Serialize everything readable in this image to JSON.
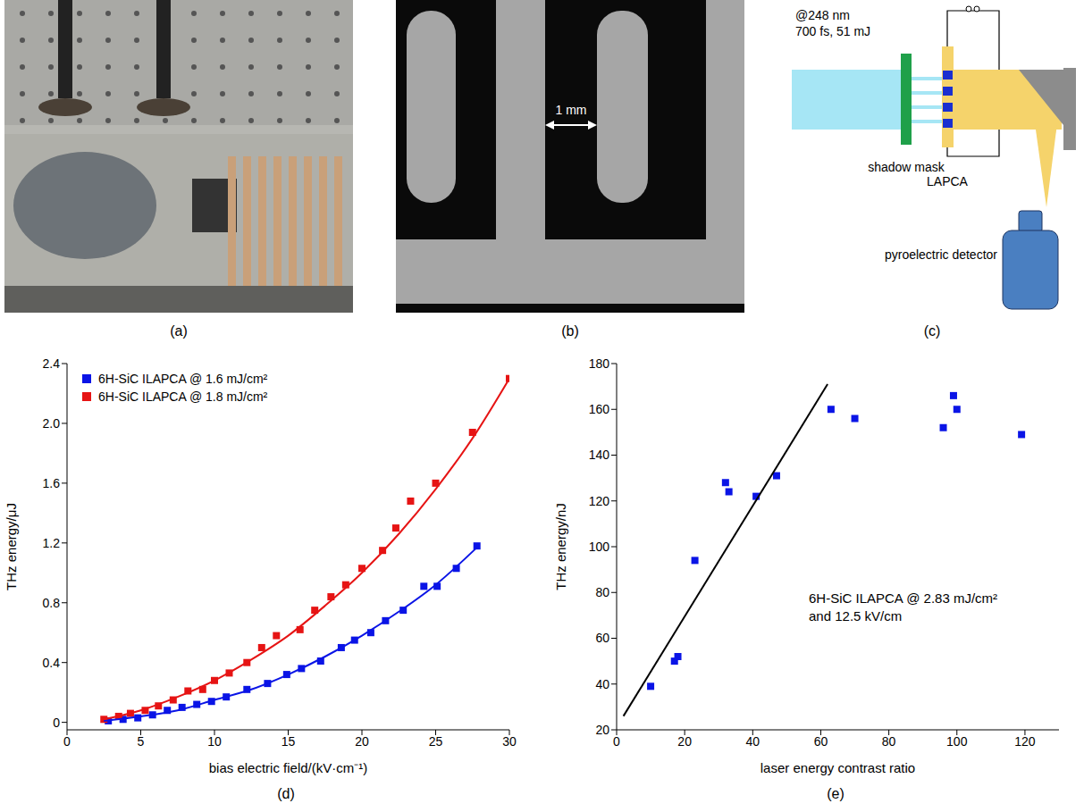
{
  "panel_labels": [
    "(a)",
    "(b)",
    "(c)",
    "(d)",
    "(e)"
  ],
  "image_b": {
    "scale_label": "1 mm"
  },
  "diagram_c": {
    "laser": [
      "@248 nm",
      "700 fs, 51 mJ"
    ],
    "mask_label": "shadow mask",
    "antenna_label": "LAPCA",
    "detector_label": "pyroelectric detector"
  },
  "chart_data": [
    {
      "type": "scatter",
      "x_label": "bias electric field/(kV·cm⁻¹)",
      "y_label": "THz energy/μJ",
      "xlim": [
        0,
        30
      ],
      "xticks": [
        0,
        5,
        10,
        15,
        20,
        25,
        30
      ],
      "ylim": [
        -0.05,
        2.4
      ],
      "yticks": [
        0,
        0.4,
        0.8,
        1.2,
        1.6,
        {
          "value": 2,
          "label": "2.0"
        },
        2.4
      ],
      "grid": false,
      "legend": "upper left",
      "series": [
        {
          "name": "6H-SiC ILAPCA @ 1.6 mJ/cm²",
          "color": "#0a14e6",
          "marker": "square",
          "x": [
            2.8,
            3.8,
            4.8,
            5.8,
            6.8,
            7.8,
            8.8,
            9.8,
            10.8,
            12.2,
            13.6,
            14.9,
            15.9,
            17.2,
            18.6,
            19.5,
            20.6,
            21.6,
            22.8,
            24.2,
            25.1,
            26.4,
            27.8
          ],
          "values": [
            0.01,
            0.02,
            0.03,
            0.05,
            0.08,
            0.1,
            0.12,
            0.14,
            0.17,
            0.22,
            0.26,
            0.32,
            0.36,
            0.41,
            0.5,
            0.55,
            0.6,
            0.68,
            0.75,
            0.91,
            0.91,
            1.03,
            1.18
          ]
        },
        {
          "name": "6H-SiC ILAPCA @ 1.8 mJ/cm²",
          "color": "#e61414",
          "marker": "square",
          "x": [
            2.5,
            3.5,
            4.3,
            5.3,
            6.2,
            7.2,
            8.2,
            9.2,
            10,
            11,
            12.2,
            13.2,
            14.2,
            15.8,
            16.8,
            17.9,
            18.9,
            20,
            21.4,
            22.3,
            23.3,
            25,
            27.5,
            30
          ],
          "values": [
            0.02,
            0.04,
            0.06,
            0.08,
            0.11,
            0.15,
            0.21,
            0.22,
            0.28,
            0.33,
            0.4,
            0.5,
            0.58,
            0.62,
            0.75,
            0.84,
            0.92,
            1.03,
            1.15,
            1.3,
            1.48,
            1.6,
            1.94,
            2.3
          ]
        },
        {
          "type": "line",
          "color": "#0a14e6",
          "line_style": "solid",
          "x": [
            2.5,
            5,
            7.5,
            10,
            12.5,
            15,
            17.5,
            20,
            22.5,
            25,
            27.8
          ],
          "values": [
            0.01,
            0.04,
            0.08,
            0.15,
            0.22,
            0.32,
            0.44,
            0.58,
            0.74,
            0.92,
            1.17
          ]
        },
        {
          "type": "line",
          "color": "#e61414",
          "line_style": "solid",
          "x": [
            2.5,
            5,
            7.5,
            10,
            12.5,
            15,
            17.5,
            20,
            22.5,
            25,
            27.5,
            30
          ],
          "values": [
            0.02,
            0.08,
            0.17,
            0.28,
            0.42,
            0.58,
            0.78,
            1.0,
            1.26,
            1.56,
            1.9,
            2.3
          ]
        }
      ]
    },
    {
      "type": "scatter",
      "x_label": "laser energy contrast ratio",
      "y_label": "THz energy/nJ",
      "xlim": [
        0,
        130
      ],
      "xticks": [
        0,
        20,
        40,
        60,
        80,
        100,
        120
      ],
      "ylim": [
        20,
        180
      ],
      "yticks": [
        20,
        40,
        60,
        80,
        100,
        120,
        140,
        160,
        180
      ],
      "grid": false,
      "annotation": [
        "6H-SiC ILAPCA @ 2.83 mJ/cm²",
        "and 12.5 kV/cm"
      ],
      "series": [
        {
          "color": "#0a14e6",
          "marker": "square",
          "x": [
            10,
            17,
            18,
            23,
            32,
            33,
            41,
            47,
            63,
            70,
            96,
            99,
            100,
            119
          ],
          "values": [
            39,
            50,
            52,
            94,
            128,
            124,
            122,
            131,
            160,
            156,
            152,
            166,
            160,
            149
          ]
        },
        {
          "type": "line",
          "color": "#000000",
          "line_style": "solid",
          "x": [
            2,
            62
          ],
          "values": [
            26,
            171
          ]
        }
      ]
    }
  ]
}
